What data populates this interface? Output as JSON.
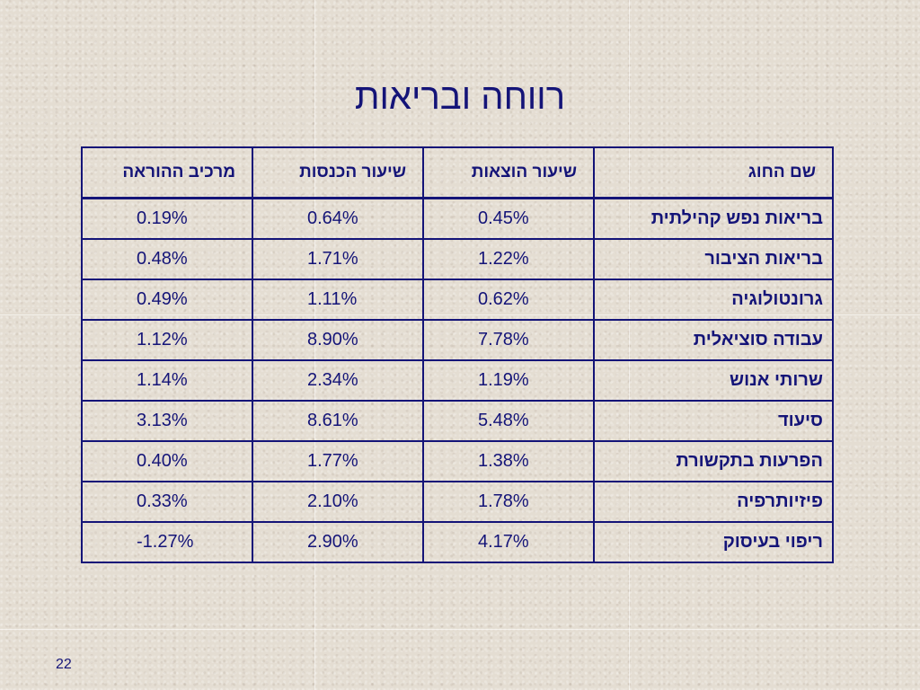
{
  "slide": {
    "title": "רווחה ובריאות",
    "page_number": "22"
  },
  "table": {
    "headers": {
      "name": "שם החוג",
      "expenses": "שיעור הוצאות",
      "income": "שיעור הכנסות",
      "teaching": "מרכיב ההוראה"
    },
    "rows": [
      {
        "name": "בריאות נפש קהילתית",
        "expenses": "0.45%",
        "income": "0.64%",
        "teaching": "0.19%"
      },
      {
        "name": "בריאות הציבור",
        "expenses": "1.22%",
        "income": "1.71%",
        "teaching": "0.48%"
      },
      {
        "name": "גרונטולוגיה",
        "expenses": "0.62%",
        "income": "1.11%",
        "teaching": "0.49%"
      },
      {
        "name": "עבודה סוציאלית",
        "expenses": "7.78%",
        "income": "8.90%",
        "teaching": "1.12%"
      },
      {
        "name": "שרותי אנוש",
        "expenses": "1.19%",
        "income": "2.34%",
        "teaching": "1.14%"
      },
      {
        "name": "סיעוד",
        "expenses": "5.48%",
        "income": "8.61%",
        "teaching": "3.13%"
      },
      {
        "name": "הפרעות בתקשורת",
        "expenses": "1.38%",
        "income": "1.77%",
        "teaching": "0.40%"
      },
      {
        "name": "פיזיותרפיה",
        "expenses": "1.78%",
        "income": "2.10%",
        "teaching": "0.33%"
      },
      {
        "name": "ריפוי בעיסוק",
        "expenses": "4.17%",
        "income": "2.90%",
        "teaching": "-1.27%"
      }
    ]
  },
  "colors": {
    "text": "#141478",
    "background": "#e4ddd2"
  }
}
